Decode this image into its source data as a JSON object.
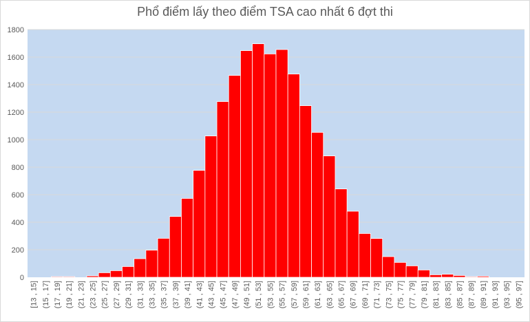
{
  "chart_data": {
    "type": "bar",
    "title": "Phổ điểm lấy theo điểm TSA cao nhất 6 đợt thi",
    "xlabel": "",
    "ylabel": "",
    "ylim": [
      0,
      1800
    ],
    "yticks": [
      0,
      200,
      400,
      600,
      800,
      1000,
      1200,
      1400,
      1600,
      1800
    ],
    "grid": true,
    "legend": "none",
    "colors": {
      "bar": "#ff0000",
      "plot_bg": "#c5d9f1",
      "grid": "#d9d9d9"
    },
    "categories": [
      "[13 , 15]",
      "(15 , 17]",
      "(17 , 19]",
      "(19 , 21]",
      "(21 , 23]",
      "(23 , 25]",
      "(25 , 27]",
      "(27 , 29]",
      "(29 , 31]",
      "(31 , 33]",
      "(33 , 35]",
      "(35 , 37]",
      "(37 , 39]",
      "(39 , 41]",
      "(41 , 43]",
      "(43 , 45]",
      "(45 , 47]",
      "(47 , 49]",
      "(49 , 51]",
      "(51 , 53]",
      "(53 , 55]",
      "(55 , 57]",
      "(57 , 59]",
      "(59 , 61]",
      "(61 , 63]",
      "(63 , 65]",
      "(65 , 67]",
      "(67 , 69]",
      "(69 , 71]",
      "(71 , 73]",
      "(73 , 75]",
      "(75 , 77]",
      "(77 , 79]",
      "(79 , 81]",
      "(81 , 83]",
      "(83 , 85]",
      "(85 , 87]",
      "(87 , 89]",
      "(89 , 91]",
      "(91 , 93]",
      "(93 , 95]",
      "(95 , 97]"
    ],
    "values": [
      0,
      0,
      5,
      5,
      0,
      10,
      33,
      48,
      78,
      135,
      197,
      283,
      442,
      573,
      777,
      1027,
      1277,
      1467,
      1647,
      1697,
      1623,
      1655,
      1477,
      1247,
      1053,
      882,
      642,
      480,
      318,
      282,
      150,
      108,
      83,
      53,
      18,
      22,
      13,
      5,
      8,
      0,
      0,
      0
    ]
  }
}
